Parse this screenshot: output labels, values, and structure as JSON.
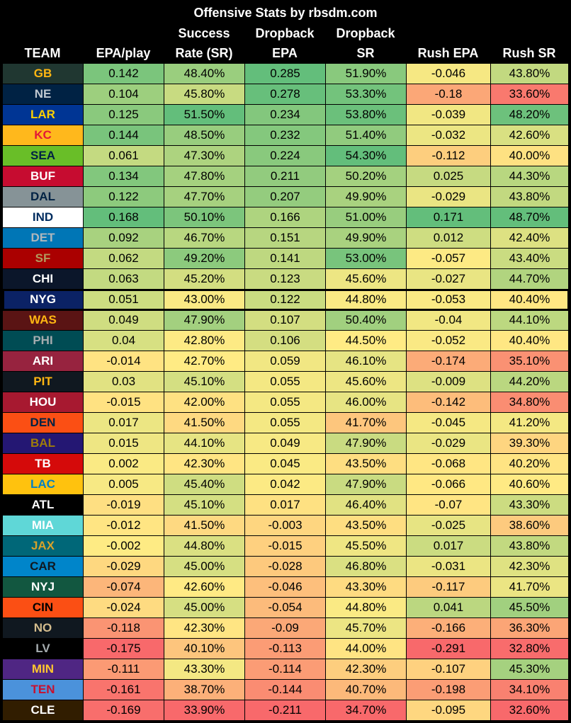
{
  "chart_data": {
    "type": "table",
    "title": "Offensive Stats by rbsdm.com",
    "columns": [
      {
        "key": "team",
        "label": "TEAM"
      },
      {
        "key": "epa_play",
        "label": "EPA/play"
      },
      {
        "key": "sr",
        "label": "Success Rate (SR)",
        "line1": "Success",
        "line2": "Rate (SR)"
      },
      {
        "key": "db_epa",
        "label": "Dropback EPA",
        "line1": "Dropback",
        "line2": "EPA"
      },
      {
        "key": "db_sr",
        "label": "Dropback SR",
        "line1": "Dropback",
        "line2": "SR"
      },
      {
        "key": "rush_epa",
        "label": "Rush EPA"
      },
      {
        "key": "rush_sr",
        "label": "Rush SR"
      }
    ],
    "highlighted_team": "NYG",
    "rows": [
      {
        "team": "GB",
        "bg": "#203731",
        "fg": "#FFB612",
        "epa_play": "0.142",
        "sr": "48.40%",
        "db_epa": "0.285",
        "db_sr": "51.90%",
        "rush_epa": "-0.046",
        "rush_sr": "43.80%"
      },
      {
        "team": "NE",
        "bg": "#002244",
        "fg": "#C0C8D0",
        "epa_play": "0.104",
        "sr": "45.80%",
        "db_epa": "0.278",
        "db_sr": "53.30%",
        "rush_epa": "-0.18",
        "rush_sr": "33.60%"
      },
      {
        "team": "LAR",
        "bg": "#003594",
        "fg": "#FFD100",
        "epa_play": "0.125",
        "sr": "51.50%",
        "db_epa": "0.234",
        "db_sr": "53.80%",
        "rush_epa": "-0.039",
        "rush_sr": "48.20%"
      },
      {
        "team": "KC",
        "bg": "#FFB81C",
        "fg": "#E31837",
        "epa_play": "0.144",
        "sr": "48.50%",
        "db_epa": "0.232",
        "db_sr": "51.40%",
        "rush_epa": "-0.032",
        "rush_sr": "42.60%"
      },
      {
        "team": "SEA",
        "bg": "#69BE28",
        "fg": "#002244",
        "epa_play": "0.061",
        "sr": "47.30%",
        "db_epa": "0.224",
        "db_sr": "54.30%",
        "rush_epa": "-0.112",
        "rush_sr": "40.00%"
      },
      {
        "team": "BUF",
        "bg": "#C60C30",
        "fg": "#FFFFFF",
        "epa_play": "0.134",
        "sr": "47.80%",
        "db_epa": "0.211",
        "db_sr": "50.20%",
        "rush_epa": "0.025",
        "rush_sr": "44.30%"
      },
      {
        "team": "DAL",
        "bg": "#869397",
        "fg": "#002244",
        "epa_play": "0.122",
        "sr": "47.70%",
        "db_epa": "0.207",
        "db_sr": "49.90%",
        "rush_epa": "-0.029",
        "rush_sr": "43.80%"
      },
      {
        "team": "IND",
        "bg": "#FFFFFF",
        "fg": "#002C5F",
        "epa_play": "0.168",
        "sr": "50.10%",
        "db_epa": "0.166",
        "db_sr": "51.00%",
        "rush_epa": "0.171",
        "rush_sr": "48.70%"
      },
      {
        "team": "DET",
        "bg": "#0076B6",
        "fg": "#B0B7BC",
        "epa_play": "0.092",
        "sr": "46.70%",
        "db_epa": "0.151",
        "db_sr": "49.90%",
        "rush_epa": "0.012",
        "rush_sr": "42.40%"
      },
      {
        "team": "SF",
        "bg": "#AA0000",
        "fg": "#B3995D",
        "epa_play": "0.062",
        "sr": "49.20%",
        "db_epa": "0.141",
        "db_sr": "53.00%",
        "rush_epa": "-0.057",
        "rush_sr": "43.40%"
      },
      {
        "team": "CHI",
        "bg": "#0B162A",
        "fg": "#FFFFFF",
        "epa_play": "0.063",
        "sr": "45.20%",
        "db_epa": "0.123",
        "db_sr": "45.60%",
        "rush_epa": "-0.027",
        "rush_sr": "44.70%"
      },
      {
        "team": "NYG",
        "bg": "#0B2265",
        "fg": "#FFFFFF",
        "epa_play": "0.051",
        "sr": "43.00%",
        "db_epa": "0.122",
        "db_sr": "44.80%",
        "rush_epa": "-0.053",
        "rush_sr": "40.40%"
      },
      {
        "team": "WAS",
        "bg": "#5A1414",
        "fg": "#FFB612",
        "epa_play": "0.049",
        "sr": "47.90%",
        "db_epa": "0.107",
        "db_sr": "50.40%",
        "rush_epa": "-0.04",
        "rush_sr": "44.10%"
      },
      {
        "team": "PHI",
        "bg": "#004C54",
        "fg": "#A5ACAF",
        "epa_play": "0.04",
        "sr": "42.80%",
        "db_epa": "0.106",
        "db_sr": "44.50%",
        "rush_epa": "-0.052",
        "rush_sr": "40.40%"
      },
      {
        "team": "ARI",
        "bg": "#97233F",
        "fg": "#FFFFFF",
        "epa_play": "-0.014",
        "sr": "42.70%",
        "db_epa": "0.059",
        "db_sr": "46.10%",
        "rush_epa": "-0.174",
        "rush_sr": "35.10%"
      },
      {
        "team": "PIT",
        "bg": "#101820",
        "fg": "#FFB612",
        "epa_play": "0.03",
        "sr": "45.10%",
        "db_epa": "0.055",
        "db_sr": "45.60%",
        "rush_epa": "-0.009",
        "rush_sr": "44.20%"
      },
      {
        "team": "HOU",
        "bg": "#A71930",
        "fg": "#FFFFFF",
        "epa_play": "-0.015",
        "sr": "42.00%",
        "db_epa": "0.055",
        "db_sr": "46.00%",
        "rush_epa": "-0.142",
        "rush_sr": "34.80%"
      },
      {
        "team": "DEN",
        "bg": "#FB4F14",
        "fg": "#002244",
        "epa_play": "0.017",
        "sr": "41.50%",
        "db_epa": "0.055",
        "db_sr": "41.70%",
        "rush_epa": "-0.045",
        "rush_sr": "41.20%"
      },
      {
        "team": "BAL",
        "bg": "#241773",
        "fg": "#9E7C0C",
        "epa_play": "0.015",
        "sr": "44.10%",
        "db_epa": "0.049",
        "db_sr": "47.90%",
        "rush_epa": "-0.029",
        "rush_sr": "39.30%"
      },
      {
        "team": "TB",
        "bg": "#D50A0A",
        "fg": "#FFFFFF",
        "epa_play": "0.002",
        "sr": "42.30%",
        "db_epa": "0.045",
        "db_sr": "43.50%",
        "rush_epa": "-0.068",
        "rush_sr": "40.20%"
      },
      {
        "team": "LAC",
        "bg": "#FFC20E",
        "fg": "#0080C6",
        "epa_play": "0.005",
        "sr": "45.40%",
        "db_epa": "0.042",
        "db_sr": "47.90%",
        "rush_epa": "-0.066",
        "rush_sr": "40.60%"
      },
      {
        "team": "ATL",
        "bg": "#000000",
        "fg": "#FFFFFF",
        "epa_play": "-0.019",
        "sr": "45.10%",
        "db_epa": "0.017",
        "db_sr": "46.40%",
        "rush_epa": "-0.07",
        "rush_sr": "43.30%"
      },
      {
        "team": "MIA",
        "bg": "#5FD7D7",
        "fg": "#FFFFFF",
        "epa_play": "-0.012",
        "sr": "41.50%",
        "db_epa": "-0.003",
        "db_sr": "43.50%",
        "rush_epa": "-0.025",
        "rush_sr": "38.60%"
      },
      {
        "team": "JAX",
        "bg": "#006778",
        "fg": "#D7A22A",
        "epa_play": "-0.002",
        "sr": "44.80%",
        "db_epa": "-0.015",
        "db_sr": "45.50%",
        "rush_epa": "0.017",
        "rush_sr": "43.80%"
      },
      {
        "team": "CAR",
        "bg": "#0085CA",
        "fg": "#101820",
        "epa_play": "-0.029",
        "sr": "45.00%",
        "db_epa": "-0.028",
        "db_sr": "46.80%",
        "rush_epa": "-0.031",
        "rush_sr": "42.30%"
      },
      {
        "team": "NYJ",
        "bg": "#125740",
        "fg": "#FFFFFF",
        "epa_play": "-0.074",
        "sr": "42.60%",
        "db_epa": "-0.046",
        "db_sr": "43.30%",
        "rush_epa": "-0.117",
        "rush_sr": "41.70%"
      },
      {
        "team": "CIN",
        "bg": "#FB4F14",
        "fg": "#000000",
        "epa_play": "-0.024",
        "sr": "45.00%",
        "db_epa": "-0.054",
        "db_sr": "44.80%",
        "rush_epa": "0.041",
        "rush_sr": "45.50%"
      },
      {
        "team": "NO",
        "bg": "#101820",
        "fg": "#D3BC8D",
        "epa_play": "-0.118",
        "sr": "42.30%",
        "db_epa": "-0.09",
        "db_sr": "45.70%",
        "rush_epa": "-0.166",
        "rush_sr": "36.30%"
      },
      {
        "team": "LV",
        "bg": "#000000",
        "fg": "#A5ACAF",
        "epa_play": "-0.175",
        "sr": "40.10%",
        "db_epa": "-0.113",
        "db_sr": "44.00%",
        "rush_epa": "-0.291",
        "rush_sr": "32.80%"
      },
      {
        "team": "MIN",
        "bg": "#4F2683",
        "fg": "#FFC62F",
        "epa_play": "-0.111",
        "sr": "43.30%",
        "db_epa": "-0.114",
        "db_sr": "42.30%",
        "rush_epa": "-0.107",
        "rush_sr": "45.30%"
      },
      {
        "team": "TEN",
        "bg": "#4B92DB",
        "fg": "#C8102E",
        "epa_play": "-0.161",
        "sr": "38.70%",
        "db_epa": "-0.144",
        "db_sr": "40.70%",
        "rush_epa": "-0.198",
        "rush_sr": "34.10%"
      },
      {
        "team": "CLE",
        "bg": "#311D00",
        "fg": "#FFFFFF",
        "epa_play": "-0.169",
        "sr": "33.90%",
        "db_epa": "-0.211",
        "db_sr": "34.70%",
        "rush_epa": "-0.095",
        "rush_sr": "32.60%"
      }
    ]
  }
}
